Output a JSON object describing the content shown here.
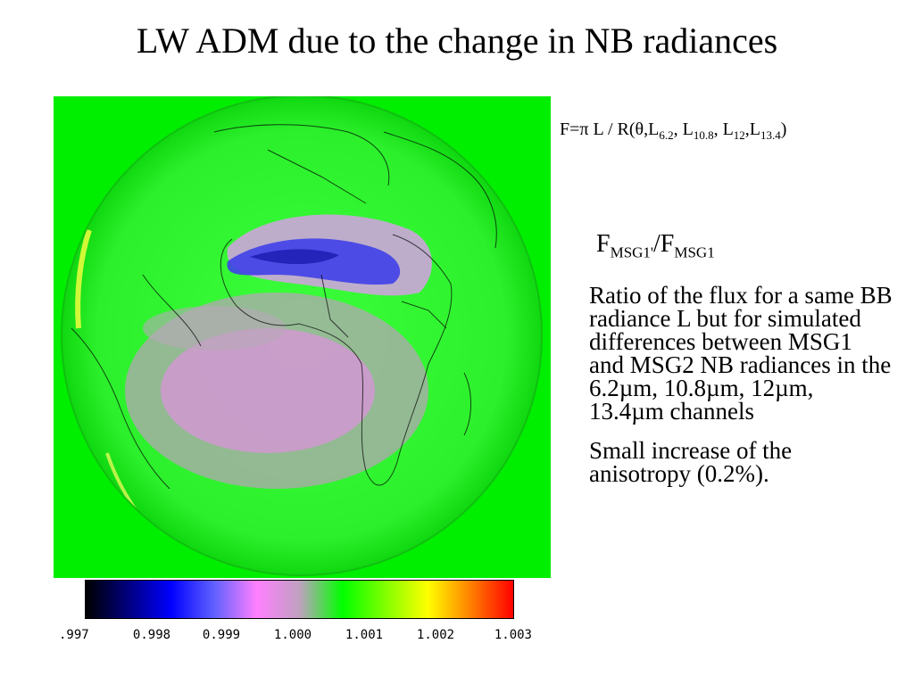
{
  "slide": {
    "title": "LW ADM due to the change in NB radiances"
  },
  "formula": {
    "lhs": "F=",
    "pi": "π",
    "mid": " L / R(",
    "theta": "θ",
    "l": ",L",
    "s1": "6.2",
    "c1": ", L",
    "s2": "10.8",
    "c2": ", L",
    "s3": "12",
    "c3": ",L",
    "s4": "13.4",
    "end": ")"
  },
  "ratio": {
    "f1": "F",
    "sub1": "MSG1'",
    "slash": "/F",
    "sub2": "MSG1"
  },
  "description": {
    "paragraph1": "Ratio of the flux for a same BB radiance L but for simulated differences between MSG1 and MSG2 NB radiances in the 6.2µm, 10.8µm, 12µm, 13.4µm channels",
    "paragraph2": "Small increase of the anisotropy (0.2%)."
  },
  "colorbar": {
    "ticks": ".997",
    "tick_labels": [
      "0.997",
      "0.998",
      "0.999",
      "1.000",
      "1.001",
      "1.002",
      "1.003"
    ],
    "first_visible": ".997",
    "colors": [
      "#000000",
      "#0000ff",
      "#ff80ff",
      "#c0a0c0",
      "#00ff00",
      "#ffff00",
      "#ff0000"
    ]
  }
}
